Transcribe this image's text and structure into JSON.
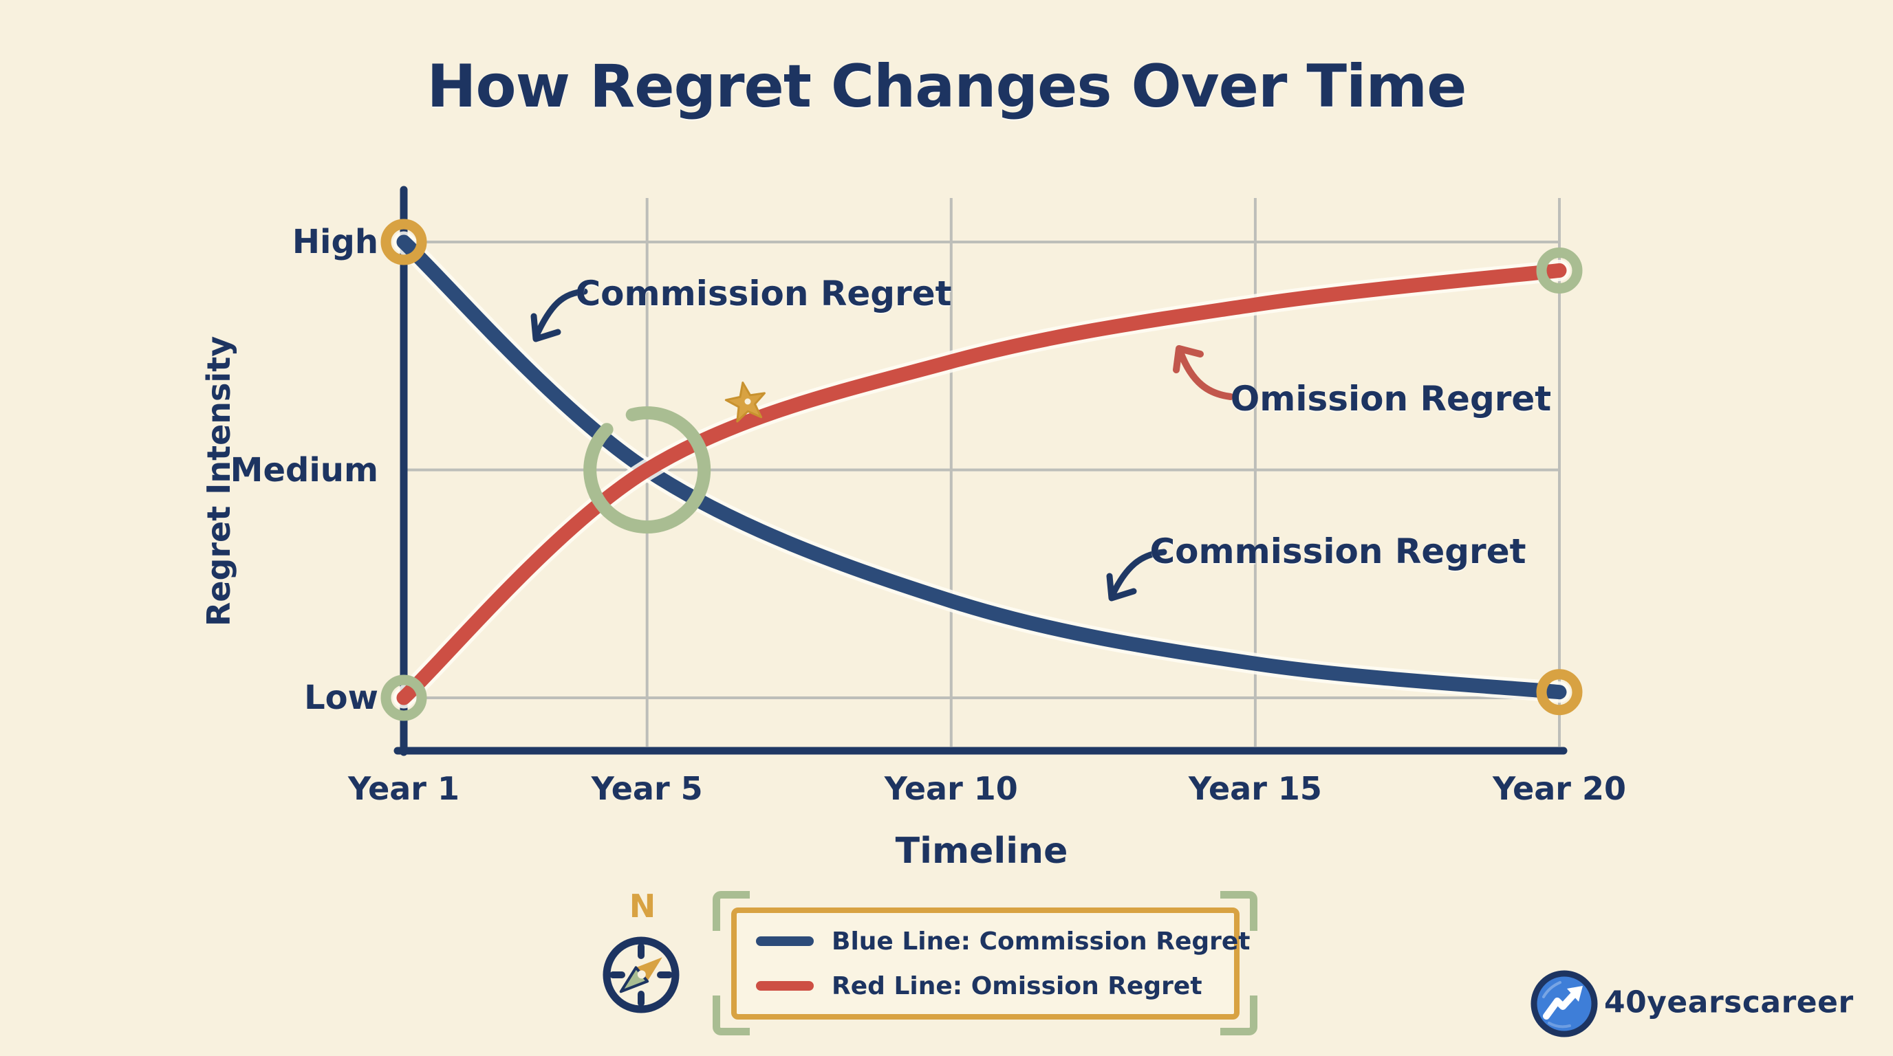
{
  "title": "How Regret Changes Over Time",
  "chart_data": {
    "type": "line",
    "title": "How Regret Changes Over Time",
    "xlabel": "Timeline",
    "ylabel": "Regret Intensity",
    "grid": true,
    "x_range": [
      1,
      20
    ],
    "y_range": [
      0,
      100
    ],
    "x_ticks": [
      {
        "label": "Year 1",
        "year": 1
      },
      {
        "label": "Year 5",
        "year": 5
      },
      {
        "label": "Year 10",
        "year": 10
      },
      {
        "label": "Year 15",
        "year": 15
      },
      {
        "label": "Year 20",
        "year": 20
      }
    ],
    "y_ticks": [
      {
        "label": "High",
        "value": 90
      },
      {
        "label": "Medium",
        "value": 50
      },
      {
        "label": "Low",
        "value": 10
      }
    ],
    "series": [
      {
        "name": "Commission Regret",
        "color": "#2c4b79",
        "endpoint_ring_color": "#d8a242",
        "x": [
          1,
          5,
          10,
          15,
          20
        ],
        "values": [
          90,
          50,
          27,
          16,
          11
        ]
      },
      {
        "name": "Omission Regret",
        "color": "#cd4f44",
        "endpoint_ring_color": "#a9bd92",
        "x": [
          1,
          5,
          10,
          15,
          20
        ],
        "values": [
          10,
          50,
          69,
          79,
          85
        ]
      }
    ],
    "crossing_marker": {
      "x": 5,
      "value": 50,
      "color": "#a9bd92",
      "note": "curves cross at Year 5 / Medium intensity"
    },
    "annotations": [
      {
        "label": "Commission Regret",
        "target_series": "Commission Regret"
      },
      {
        "label": "Omission Regret",
        "target_series": "Omission Regret"
      },
      {
        "label": "Commission Regret",
        "target_series": "Commission Regret"
      }
    ],
    "legend_position": "bottom-center"
  },
  "legend": {
    "items": [
      {
        "label": "Blue Line: Commission Regret",
        "swatch_color": "#2c4b79"
      },
      {
        "label": "Red Line: Omission Regret",
        "swatch_color": "#cd4f44"
      }
    ]
  },
  "compass": {
    "north_label": "N"
  },
  "logo": {
    "text": "40yearscareer"
  },
  "colors": {
    "background": "#f8f1de",
    "navy_text": "#1d3461",
    "axis": "#1f3864",
    "blue_line": "#2c4b79",
    "red_line": "#cd4f44",
    "gold": "#d8a242",
    "sage_green": "#a9bd92",
    "gridline": "#bdbeb9"
  }
}
